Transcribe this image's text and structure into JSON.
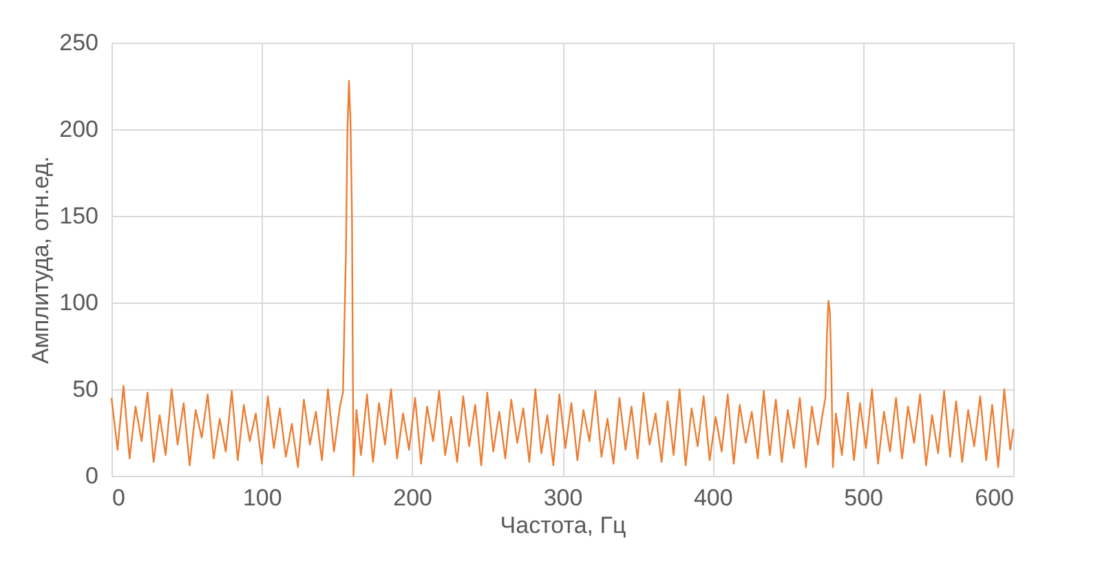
{
  "chart_data": {
    "type": "line",
    "xlabel": "Частота, Гц",
    "ylabel": "Амплитуда, отн.ед.",
    "xlim": [
      0,
      600
    ],
    "xticks": [
      0,
      100,
      200,
      300,
      400,
      500,
      600
    ],
    "ylim": [
      0,
      250
    ],
    "yticks": [
      0,
      50,
      100,
      150,
      200,
      250
    ],
    "grid": true,
    "legend": false,
    "series": [
      {
        "color": "#ed7d31",
        "x": [
          0,
          4,
          8,
          12,
          16,
          20,
          24,
          28,
          32,
          36,
          40,
          44,
          48,
          52,
          56,
          60,
          64,
          68,
          72,
          76,
          80,
          84,
          88,
          92,
          96,
          100,
          104,
          108,
          112,
          116,
          120,
          124,
          128,
          132,
          136,
          140,
          144,
          148,
          152,
          154,
          156,
          157,
          158,
          159,
          160,
          161,
          163,
          166,
          170,
          174,
          178,
          182,
          186,
          190,
          194,
          198,
          202,
          206,
          210,
          214,
          218,
          222,
          226,
          230,
          234,
          238,
          242,
          246,
          250,
          254,
          258,
          262,
          266,
          270,
          274,
          278,
          282,
          286,
          290,
          294,
          298,
          302,
          306,
          310,
          314,
          318,
          322,
          326,
          330,
          334,
          338,
          342,
          346,
          350,
          354,
          358,
          362,
          366,
          370,
          374,
          378,
          382,
          386,
          390,
          394,
          398,
          402,
          406,
          410,
          414,
          418,
          422,
          426,
          430,
          434,
          438,
          442,
          446,
          450,
          454,
          458,
          462,
          466,
          470,
          473,
          475,
          476,
          477,
          478,
          479,
          480,
          482,
          486,
          490,
          494,
          498,
          502,
          506,
          510,
          514,
          518,
          522,
          526,
          530,
          534,
          538,
          542,
          546,
          550,
          554,
          558,
          562,
          566,
          570,
          574,
          578,
          582,
          586,
          590,
          594,
          598,
          600
        ],
        "values": [
          45,
          15,
          52,
          10,
          40,
          20,
          48,
          8,
          35,
          12,
          50,
          18,
          42,
          6,
          38,
          22,
          47,
          10,
          33,
          14,
          49,
          9,
          41,
          20,
          36,
          7,
          46,
          16,
          39,
          11,
          30,
          5,
          44,
          18,
          37,
          9,
          50,
          14,
          40,
          48,
          130,
          200,
          228,
          205,
          150,
          0,
          38,
          12,
          47,
          8,
          42,
          18,
          50,
          10,
          36,
          15,
          45,
          7,
          40,
          20,
          49,
          12,
          34,
          8,
          46,
          17,
          41,
          6,
          48,
          14,
          37,
          10,
          44,
          19,
          39,
          8,
          50,
          13,
          35,
          6,
          47,
          16,
          42,
          9,
          38,
          20,
          49,
          11,
          33,
          7,
          45,
          15,
          40,
          10,
          48,
          18,
          36,
          8,
          43,
          12,
          50,
          6,
          39,
          17,
          46,
          9,
          34,
          14,
          47,
          7,
          41,
          19,
          37,
          10,
          49,
          12,
          44,
          8,
          38,
          16,
          45,
          5,
          40,
          18,
          35,
          45,
          80,
          101,
          95,
          60,
          5,
          36,
          12,
          48,
          9,
          42,
          16,
          50,
          7,
          37,
          14,
          45,
          10,
          40,
          19,
          47,
          6,
          35,
          13,
          49,
          11,
          43,
          8,
          38,
          17,
          46,
          9,
          41,
          5,
          50,
          15,
          27
        ]
      }
    ]
  }
}
